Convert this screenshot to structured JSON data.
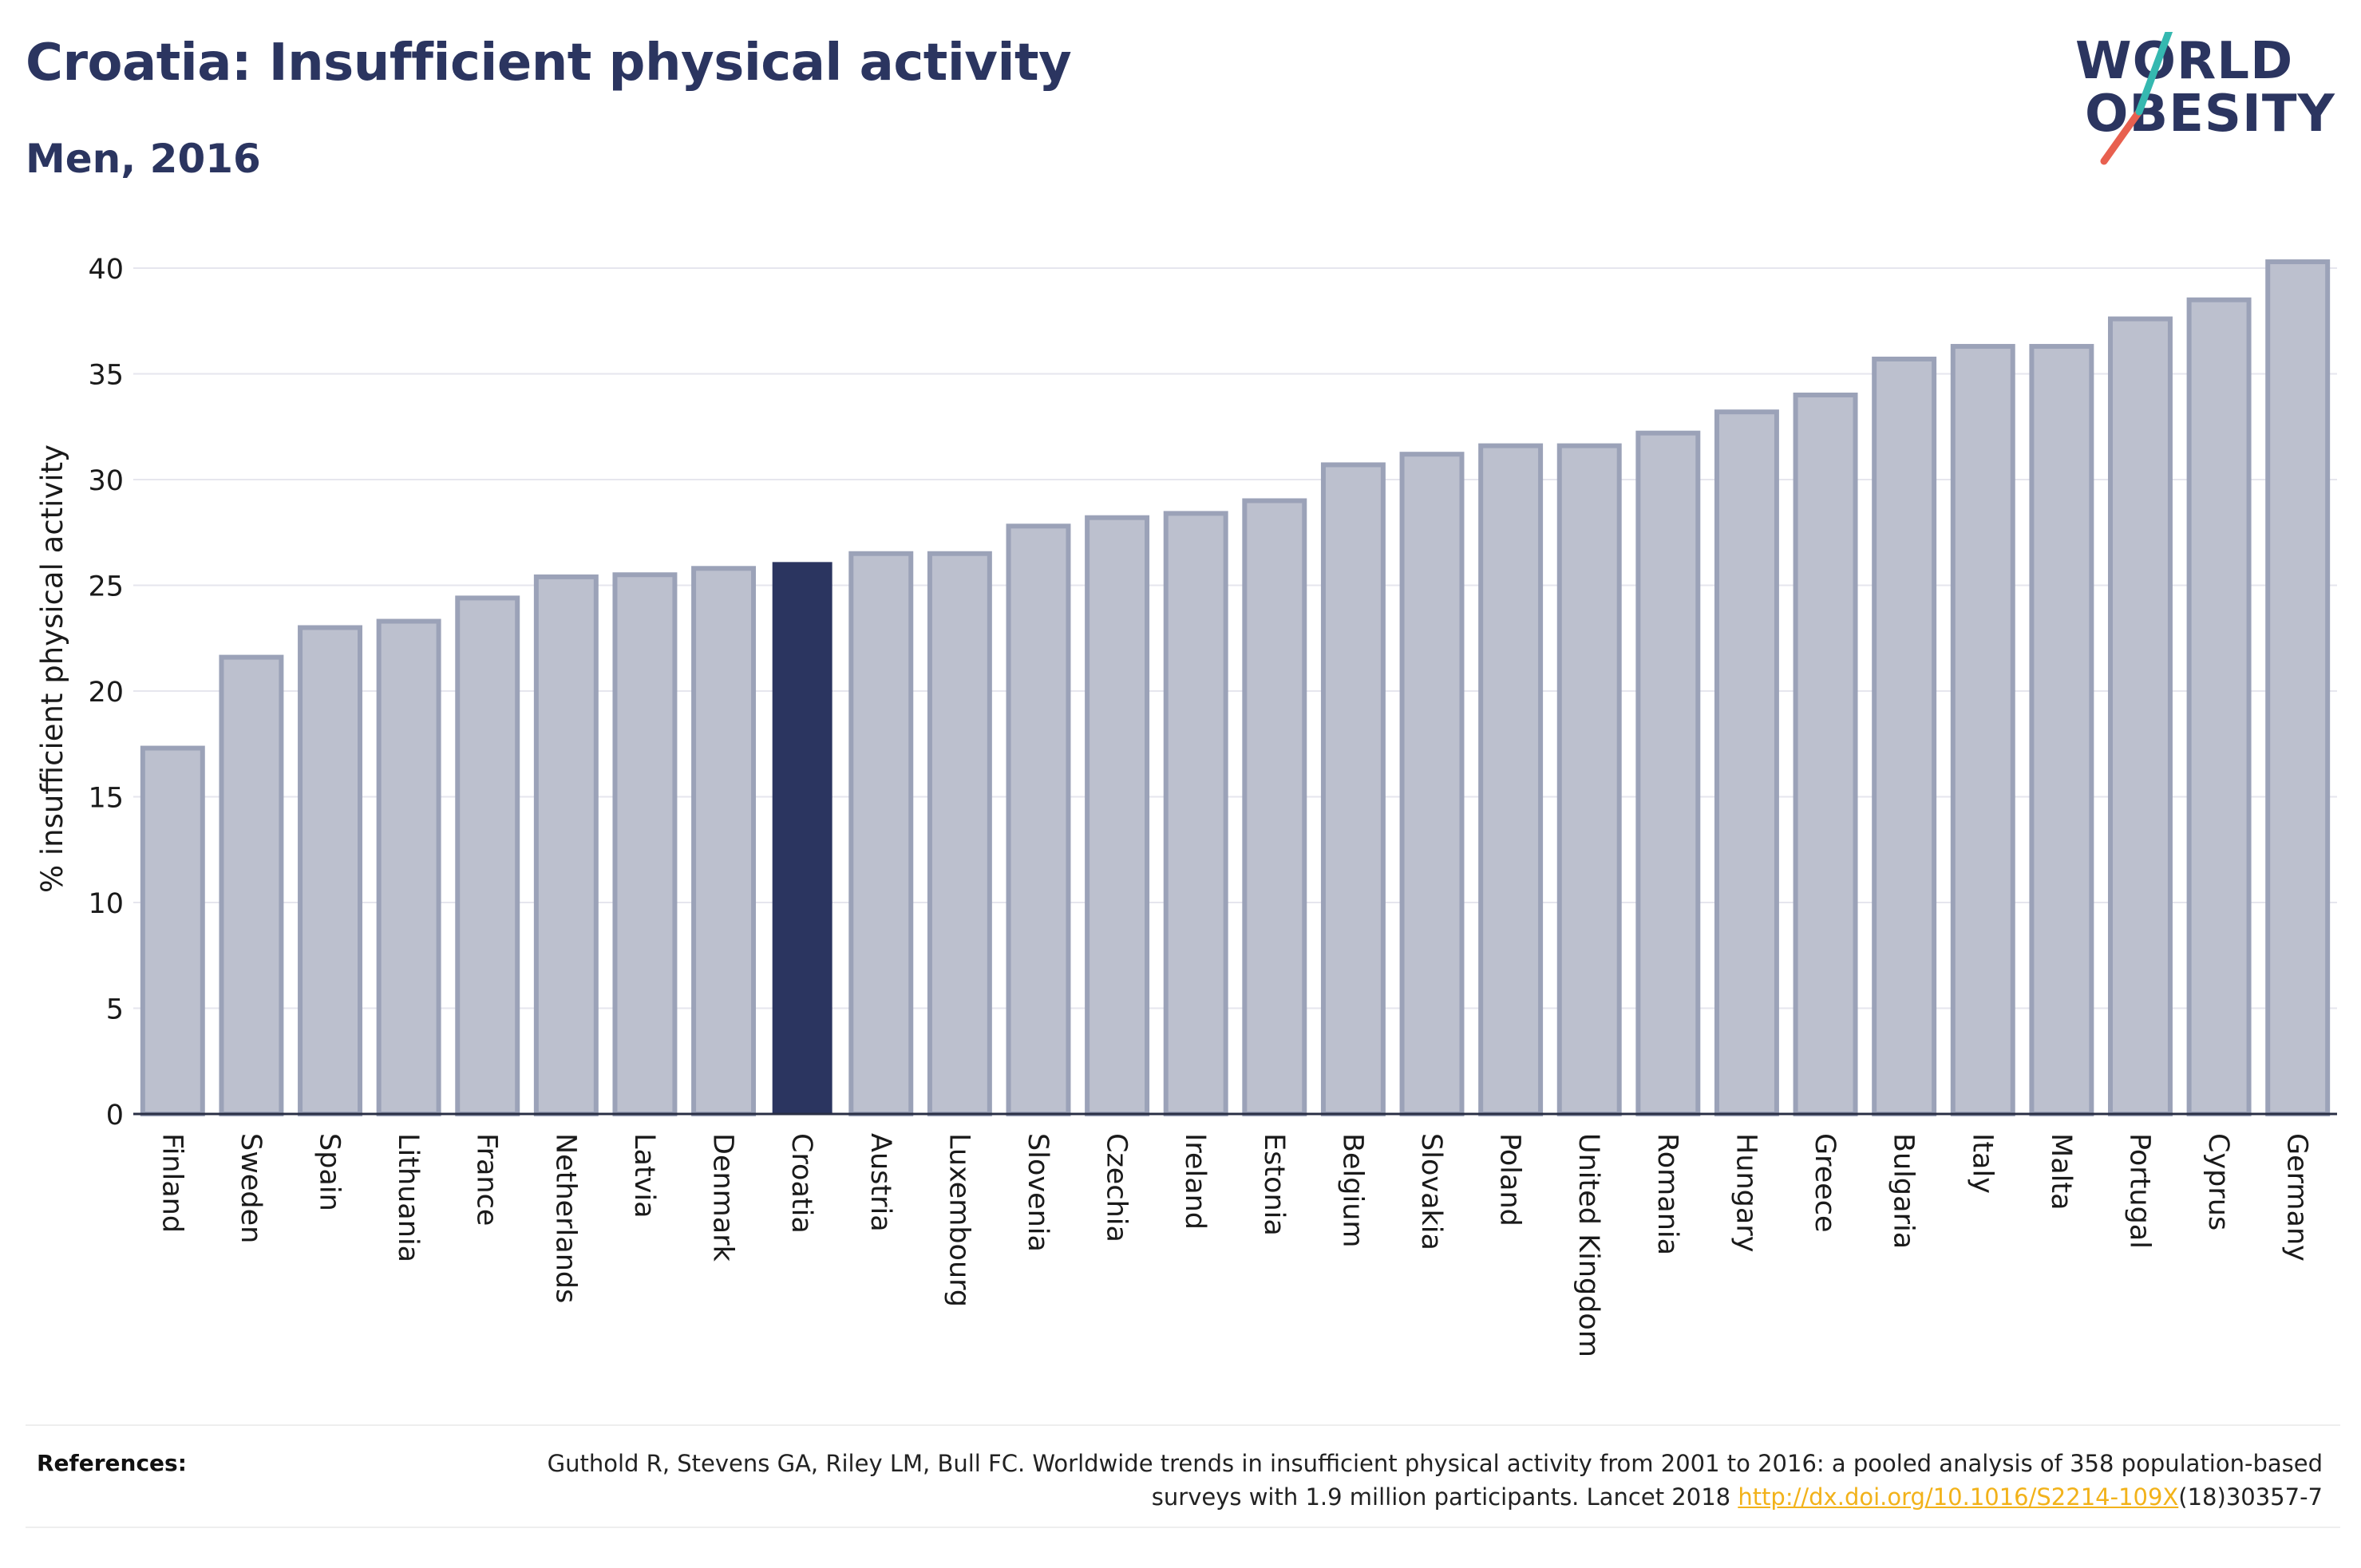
{
  "title": "Croatia: Insufficient physical activity",
  "subtitle": "Men, 2016",
  "logo": {
    "line1": "WORLD",
    "line2": "OBESITY"
  },
  "colors": {
    "text_dark": "#2b3560",
    "highlight_bar": "#2b3560",
    "bar_fill": "#bcc0ce",
    "bar_stroke": "#9ba2b8",
    "gridline": "#e6e6ee",
    "logo_slash_teal": "#35b8b0",
    "logo_slash_red": "#e8604f",
    "link": "#f2b21a"
  },
  "chart_data": {
    "type": "bar",
    "ylabel": "% insufficient physical activity",
    "xlabel": "",
    "ylim": [
      0,
      40
    ],
    "yticks": [
      0,
      5,
      10,
      15,
      20,
      25,
      30,
      35,
      40
    ],
    "grid": true,
    "highlight": "Croatia",
    "categories": [
      "Finland",
      "Sweden",
      "Spain",
      "Lithuania",
      "France",
      "Netherlands",
      "Latvia",
      "Denmark",
      "Croatia",
      "Austria",
      "Luxembourg",
      "Slovenia",
      "Czechia",
      "Ireland",
      "Estonia",
      "Belgium",
      "Slovakia",
      "Poland",
      "United Kingdom",
      "Romania",
      "Hungary",
      "Greece",
      "Bulgaria",
      "Italy",
      "Malta",
      "Portugal",
      "Cyprus",
      "Germany"
    ],
    "values": [
      17.3,
      21.6,
      23.0,
      23.3,
      24.4,
      25.4,
      25.5,
      25.8,
      26.1,
      26.5,
      26.5,
      27.8,
      28.2,
      28.4,
      29.0,
      30.7,
      31.2,
      31.6,
      31.6,
      32.2,
      33.2,
      34.0,
      35.7,
      36.3,
      36.3,
      37.6,
      38.5,
      40.3
    ]
  },
  "references": {
    "label": "References:",
    "text_before": "Guthold R, Stevens GA, Riley LM, Bull FC. Worldwide trends in insufficient physical activity from 2001 to 2016: a pooled analysis of 358 population-based surveys with 1.9 million participants. Lancet 2018 ",
    "link": "http://dx.doi.org/10.1016/S2214-109X",
    "text_after": "(18)30357-7"
  }
}
